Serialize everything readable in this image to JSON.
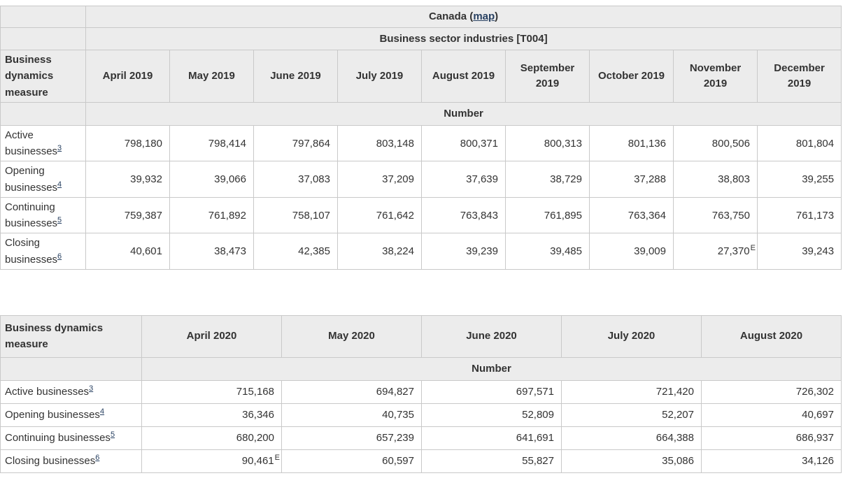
{
  "colors": {
    "header_background": "#ececec",
    "border": "#c9c9c9",
    "text": "#333333",
    "link": "#284162"
  },
  "table_2019": {
    "region_label": "Canada",
    "map_prefix": " (",
    "map_label": "map",
    "map_suffix": ")",
    "sector_header": "Business sector industries [T004]",
    "stub_header": "Business dynamics measure",
    "unit_header": "Number",
    "columns": [
      "April 2019",
      "May 2019",
      "June 2019",
      "July 2019",
      "August 2019",
      "September 2019",
      "October 2019",
      "November 2019",
      "December 2019"
    ],
    "rows": [
      {
        "label": "Active businesses",
        "footnote": "3",
        "values": [
          "798,180",
          "798,414",
          "797,864",
          "803,148",
          "800,371",
          "800,313",
          "801,136",
          "800,506",
          "801,804"
        ]
      },
      {
        "label": "Opening businesses",
        "footnote": "4",
        "values": [
          "39,932",
          "39,066",
          "37,083",
          "37,209",
          "37,639",
          "38,729",
          "37,288",
          "38,803",
          "39,255"
        ]
      },
      {
        "label": "Continuing businesses",
        "footnote": "5",
        "values": [
          "759,387",
          "761,892",
          "758,107",
          "761,642",
          "763,843",
          "761,895",
          "763,364",
          "763,750",
          "761,173"
        ]
      },
      {
        "label": "Closing businesses",
        "footnote": "6",
        "values": [
          "40,601",
          "38,473",
          "42,385",
          "38,224",
          "39,239",
          "39,485",
          "39,009",
          "27,370",
          "39,243"
        ],
        "flag": "E",
        "flag_col": 7
      }
    ]
  },
  "table_2020": {
    "stub_header": "Business dynamics measure",
    "unit_header": "Number",
    "columns": [
      "April 2020",
      "May 2020",
      "June 2020",
      "July 2020",
      "August 2020"
    ],
    "rows": [
      {
        "label": "Active businesses",
        "footnote": "3",
        "values": [
          "715,168",
          "694,827",
          "697,571",
          "721,420",
          "726,302"
        ]
      },
      {
        "label": "Opening businesses",
        "footnote": "4",
        "values": [
          "36,346",
          "40,735",
          "52,809",
          "52,207",
          "40,697"
        ]
      },
      {
        "label": "Continuing businesses",
        "footnote": "5",
        "values": [
          "680,200",
          "657,239",
          "641,691",
          "664,388",
          "686,937"
        ],
        "flag": null
      },
      {
        "label": "Closing businesses",
        "footnote": "6",
        "values": [
          "90,461",
          "60,597",
          "55,827",
          "35,086",
          "34,126"
        ],
        "flag": "E",
        "flag_col": 0
      }
    ]
  }
}
